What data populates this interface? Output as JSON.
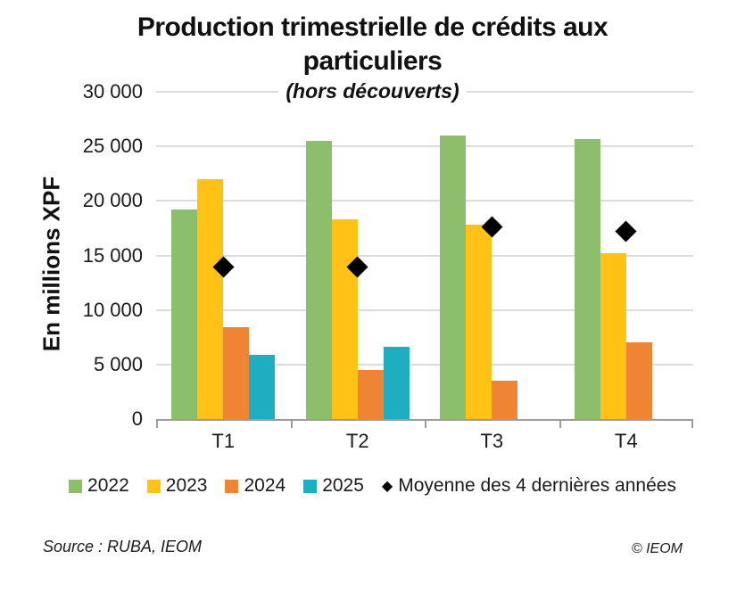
{
  "source": "Source : RUBA, IEOM",
  "copyright": "© IEOM",
  "chart_data": {
    "type": "bar",
    "title": "Production trimestrielle de crédits aux particuliers",
    "subtitle": "(hors découverts)",
    "ylabel": "En millions XPF",
    "categories": [
      "T1",
      "T2",
      "T3",
      "T4"
    ],
    "series": [
      {
        "name": "2022",
        "type": "bar",
        "color": "#8CBE6C",
        "values": [
          19200,
          25500,
          26000,
          25700
        ]
      },
      {
        "name": "2023",
        "type": "bar",
        "color": "#FFC215",
        "values": [
          22000,
          18300,
          17800,
          15200
        ]
      },
      {
        "name": "2024",
        "type": "bar",
        "color": "#EE8434",
        "values": [
          8400,
          4500,
          3500,
          7000
        ]
      },
      {
        "name": "2025",
        "type": "bar",
        "color": "#1FAEC1",
        "values": [
          5900,
          6600,
          null,
          null
        ]
      },
      {
        "name": "Moyenne des 4 dernières années",
        "type": "scatter",
        "marker": "diamond",
        "color": "#000000",
        "values": [
          13900,
          13900,
          17600,
          17200
        ]
      }
    ],
    "ylim": [
      0,
      30000
    ],
    "yticks": [
      0,
      5000,
      10000,
      15000,
      20000,
      25000,
      30000
    ],
    "ytick_labels": [
      "0",
      "5 000",
      "10 000",
      "15 000",
      "20 000",
      "25 000",
      "30 000"
    ],
    "grid": true,
    "legend_position": "bottom",
    "colors": {
      "grid": "#dcdcdc",
      "axis": "#9c9c9c",
      "text": "#1a1a1a"
    }
  }
}
